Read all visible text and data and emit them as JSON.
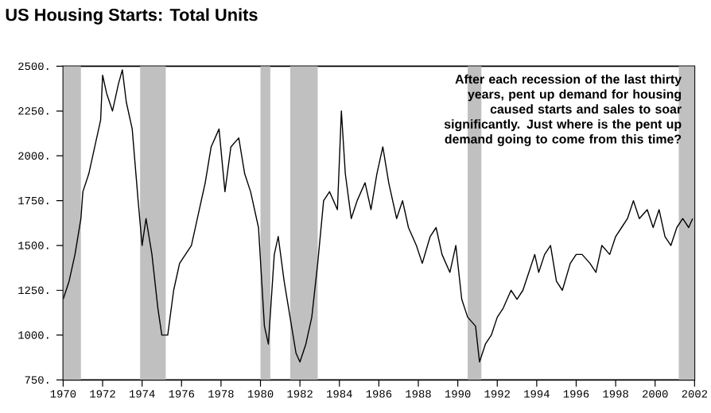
{
  "chart_data": {
    "type": "line",
    "title": "US Housing Starts: Total Units",
    "annotations": [
      "After each recession of the last thirty years, pent up demand for housing caused starts and sales to soar significantly.  Just where is the pent up demand going to come from this time?"
    ],
    "x": [
      1970.0,
      1970.3,
      1970.6,
      1970.9,
      1971.0,
      1971.3,
      1971.6,
      1971.9,
      1972.0,
      1972.2,
      1972.5,
      1972.8,
      1973.0,
      1973.2,
      1973.5,
      1973.8,
      1974.0,
      1974.2,
      1974.5,
      1974.8,
      1975.0,
      1975.3,
      1975.6,
      1975.9,
      1976.2,
      1976.5,
      1976.9,
      1977.2,
      1977.5,
      1977.9,
      1978.2,
      1978.5,
      1978.9,
      1979.2,
      1979.5,
      1979.9,
      1980.2,
      1980.4,
      1980.7,
      1980.9,
      1981.2,
      1981.5,
      1981.8,
      1982.0,
      1982.3,
      1982.6,
      1982.9,
      1983.2,
      1983.5,
      1983.9,
      1984.1,
      1984.3,
      1984.6,
      1984.9,
      1985.3,
      1985.6,
      1985.9,
      1986.2,
      1986.5,
      1986.9,
      1987.2,
      1987.5,
      1987.9,
      1988.2,
      1988.6,
      1988.9,
      1989.2,
      1989.6,
      1989.9,
      1990.2,
      1990.5,
      1990.9,
      1991.1,
      1991.4,
      1991.7,
      1992.0,
      1992.3,
      1992.7,
      1993.0,
      1993.3,
      1993.6,
      1993.9,
      1994.1,
      1994.4,
      1994.7,
      1995.0,
      1995.3,
      1995.7,
      1996.0,
      1996.3,
      1996.7,
      1997.0,
      1997.3,
      1997.7,
      1998.0,
      1998.3,
      1998.6,
      1998.9,
      1999.2,
      1999.6,
      1999.9,
      2000.2,
      2000.5,
      2000.8,
      2001.1,
      2001.4,
      2001.7,
      2001.9
    ],
    "series": [
      {
        "color": "#000000",
        "values": [
          1200,
          1300,
          1450,
          1650,
          1800,
          1900,
          2050,
          2200,
          2450,
          2350,
          2250,
          2400,
          2480,
          2300,
          2150,
          1750,
          1500,
          1650,
          1450,
          1150,
          1000,
          1000,
          1250,
          1400,
          1450,
          1500,
          1700,
          1850,
          2050,
          2150,
          1800,
          2050,
          2100,
          1900,
          1800,
          1600,
          1050,
          950,
          1450,
          1550,
          1300,
          1100,
          900,
          850,
          950,
          1100,
          1400,
          1750,
          1800,
          1700,
          2250,
          1900,
          1650,
          1750,
          1850,
          1700,
          1900,
          2050,
          1850,
          1650,
          1750,
          1600,
          1500,
          1400,
          1550,
          1600,
          1450,
          1350,
          1500,
          1200,
          1100,
          1050,
          850,
          950,
          1000,
          1100,
          1150,
          1250,
          1200,
          1250,
          1350,
          1450,
          1350,
          1450,
          1500,
          1300,
          1250,
          1400,
          1450,
          1450,
          1400,
          1350,
          1500,
          1450,
          1550,
          1600,
          1650,
          1750,
          1650,
          1700,
          1600,
          1700,
          1550,
          1500,
          1600,
          1650,
          1600,
          1650
        ]
      }
    ],
    "bands": [
      {
        "axis": "x",
        "from": 1970.0,
        "to": 1970.9,
        "color": "#c0c0c0"
      },
      {
        "axis": "x",
        "from": 1973.9,
        "to": 1975.2,
        "color": "#c0c0c0"
      },
      {
        "axis": "x",
        "from": 1980.0,
        "to": 1980.5,
        "color": "#c0c0c0"
      },
      {
        "axis": "x",
        "from": 1981.5,
        "to": 1982.9,
        "color": "#c0c0c0"
      },
      {
        "axis": "x",
        "from": 1990.5,
        "to": 1991.2,
        "color": "#c0c0c0"
      },
      {
        "axis": "x",
        "from": 2001.2,
        "to": 2002.0,
        "color": "#c0c0c0"
      }
    ],
    "xlim": [
      1970,
      2002
    ],
    "xticks": [
      1970,
      1972,
      1974,
      1976,
      1978,
      1980,
      1982,
      1984,
      1986,
      1988,
      1990,
      1992,
      1994,
      1996,
      1998,
      2000,
      2002
    ],
    "ylim": [
      750,
      2500
    ],
    "yticks": [
      {
        "value": 750,
        "label": "750."
      },
      {
        "value": 1000,
        "label": "1000."
      },
      {
        "value": 1250,
        "label": "1250."
      },
      {
        "value": 1500,
        "label": "1500."
      },
      {
        "value": 1750,
        "label": "1750."
      },
      {
        "value": 2000,
        "label": "2000."
      },
      {
        "value": 2250,
        "label": "2250."
      },
      {
        "value": 2500,
        "label": "2500."
      }
    ]
  }
}
